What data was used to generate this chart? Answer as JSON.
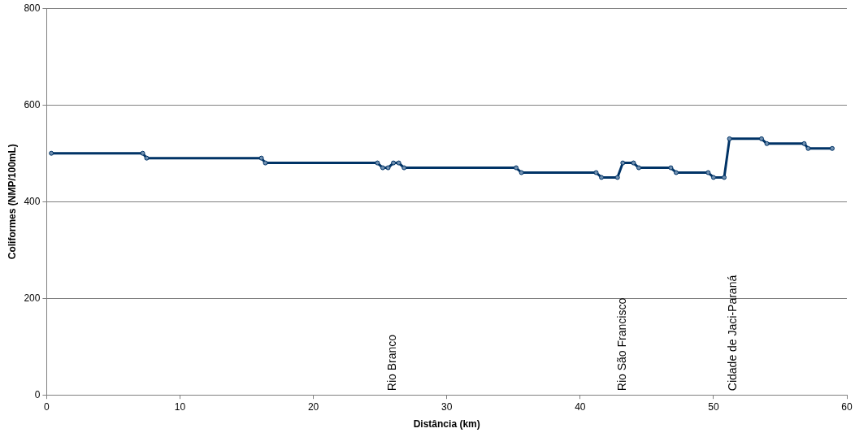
{
  "chart_data": {
    "type": "line",
    "xlabel": "Distância (km)",
    "ylabel": "Coliformes (NMP/100mL)",
    "xlim": [
      0,
      60
    ],
    "xticks": [
      0,
      10,
      20,
      30,
      40,
      50,
      60
    ],
    "ylim": [
      0,
      800
    ],
    "yticks": [
      0,
      200,
      400,
      600,
      800
    ],
    "grid": "y",
    "legend": false,
    "marker": "circle",
    "line_style": "solid",
    "series": [
      {
        "color": "#003366",
        "x": [
          0.35,
          7.2,
          7.5,
          16.1,
          16.4,
          24.8,
          25.2,
          25.6,
          26.0,
          26.4,
          26.8,
          35.2,
          35.6,
          41.2,
          41.6,
          42.8,
          43.2,
          44.0,
          44.4,
          46.8,
          47.2,
          49.6,
          50.0,
          50.8,
          51.2,
          53.6,
          54.0,
          56.8,
          57.1,
          58.9
        ],
        "values": [
          500,
          500,
          490,
          490,
          480,
          480,
          470,
          470,
          480,
          480,
          470,
          470,
          460,
          460,
          450,
          450,
          480,
          480,
          470,
          470,
          460,
          460,
          450,
          450,
          530,
          530,
          520,
          520,
          510,
          510
        ]
      }
    ],
    "annotations": [
      "Rio Branco",
      "Rio São Francisco",
      "Cidade de Jaci-Paraná"
    ]
  }
}
